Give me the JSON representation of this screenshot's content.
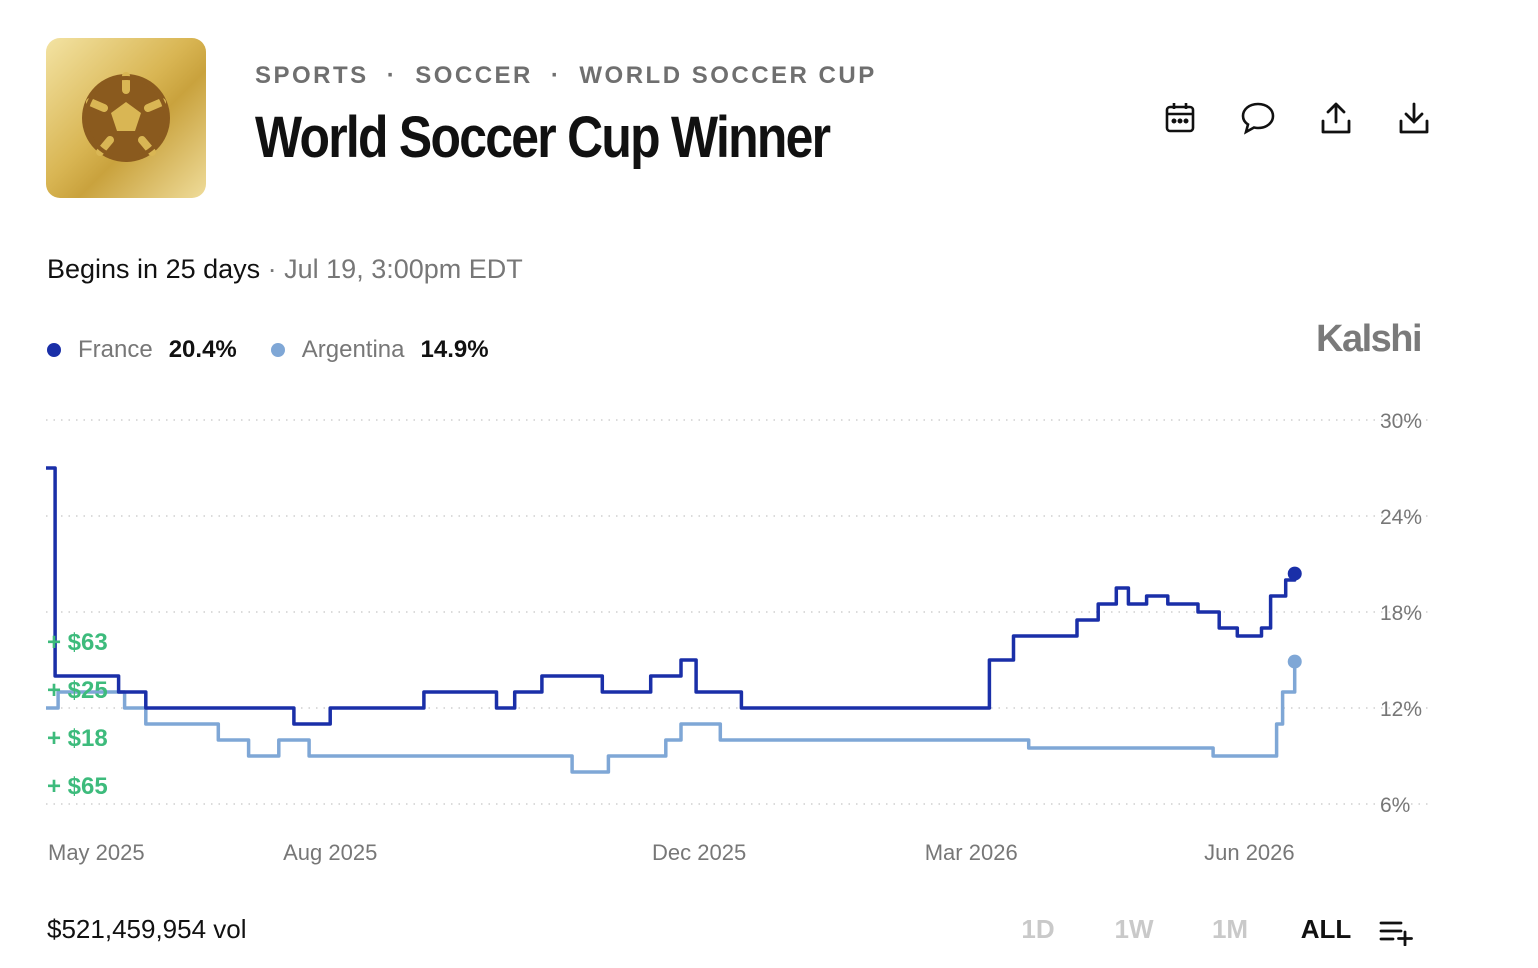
{
  "header": {
    "breadcrumbs": [
      "SPORTS",
      "SOCCER",
      "WORLD SOCCER CUP"
    ],
    "separator": "·",
    "title": "World Soccer Cup Winner",
    "logo_icon": "soccer-ball-icon",
    "actions": [
      {
        "name": "calendar-icon"
      },
      {
        "name": "comment-icon"
      },
      {
        "name": "share-icon"
      },
      {
        "name": "download-icon"
      }
    ]
  },
  "schedule": {
    "begins": "Begins in 25 days",
    "separator": " · ",
    "date": "Jul 19, 3:00pm EDT"
  },
  "brand": "Kalshi",
  "legend": [
    {
      "name": "France",
      "value": "20.4%",
      "color": "#1a2fa8"
    },
    {
      "name": "Argentina",
      "value": "14.9%",
      "color": "#7fa7d6"
    }
  ],
  "chart_data": {
    "type": "line",
    "y_ticks": [
      "30%",
      "24%",
      "18%",
      "12%",
      "6%"
    ],
    "y_tick_values": [
      30,
      24,
      18,
      12,
      6
    ],
    "ylim": [
      6,
      30
    ],
    "x_ticks": [
      "May 2025",
      "Aug 2025",
      "Dec 2025",
      "Mar 2026",
      "Jun 2026"
    ],
    "x_tick_dates": [
      "2025-05-01",
      "2025-08-01",
      "2025-12-01",
      "2026-03-01",
      "2026-06-01"
    ],
    "xlim": [
      "2025-04-29",
      "2026-06-27"
    ],
    "grid": true,
    "trade_annotations": [
      "+ $63",
      "+ $25",
      "+ $18",
      "+ $65"
    ],
    "series": [
      {
        "name": "France",
        "color": "#1a2fa8",
        "points": [
          [
            "2025-04-29",
            27
          ],
          [
            "2025-05-01",
            27
          ],
          [
            "2025-05-02",
            14
          ],
          [
            "2025-05-05",
            14
          ],
          [
            "2025-05-20",
            14
          ],
          [
            "2025-05-23",
            13
          ],
          [
            "2025-05-27",
            13
          ],
          [
            "2025-06-01",
            12
          ],
          [
            "2025-06-05",
            12
          ],
          [
            "2025-06-15",
            12
          ],
          [
            "2025-06-18",
            12
          ],
          [
            "2025-07-01",
            12
          ],
          [
            "2025-07-10",
            12
          ],
          [
            "2025-07-20",
            11
          ],
          [
            "2025-07-25",
            11
          ],
          [
            "2025-08-01",
            12
          ],
          [
            "2025-08-15",
            12
          ],
          [
            "2025-08-25",
            12
          ],
          [
            "2025-09-01",
            13
          ],
          [
            "2025-09-15",
            13
          ],
          [
            "2025-09-20",
            13
          ],
          [
            "2025-09-25",
            12
          ],
          [
            "2025-10-01",
            13
          ],
          [
            "2025-10-10",
            14
          ],
          [
            "2025-10-20",
            14
          ],
          [
            "2025-10-30",
            13
          ],
          [
            "2025-11-05",
            13
          ],
          [
            "2025-11-15",
            14
          ],
          [
            "2025-11-20",
            14
          ],
          [
            "2025-11-25",
            15
          ],
          [
            "2025-11-30",
            13
          ],
          [
            "2025-12-10",
            13
          ],
          [
            "2025-12-15",
            12
          ],
          [
            "2025-12-25",
            12
          ],
          [
            "2026-01-15",
            12
          ],
          [
            "2026-02-01",
            12
          ],
          [
            "2026-02-15",
            12
          ],
          [
            "2026-03-01",
            12
          ],
          [
            "2026-03-04",
            12
          ],
          [
            "2026-03-07",
            15
          ],
          [
            "2026-03-15",
            16.5
          ],
          [
            "2026-03-25",
            16.5
          ],
          [
            "2026-04-05",
            17.5
          ],
          [
            "2026-04-12",
            18.5
          ],
          [
            "2026-04-18",
            19.5
          ],
          [
            "2026-04-22",
            18.5
          ],
          [
            "2026-04-28",
            19
          ],
          [
            "2026-05-05",
            18.5
          ],
          [
            "2026-05-15",
            18
          ],
          [
            "2026-05-22",
            17
          ],
          [
            "2026-05-28",
            16.5
          ],
          [
            "2026-06-05",
            17
          ],
          [
            "2026-06-08",
            19
          ],
          [
            "2026-06-13",
            20
          ],
          [
            "2026-06-16",
            20.4
          ]
        ]
      },
      {
        "name": "Argentina",
        "color": "#7fa7d6",
        "points": [
          [
            "2025-04-29",
            12
          ],
          [
            "2025-05-01",
            12
          ],
          [
            "2025-05-03",
            13
          ],
          [
            "2025-05-15",
            13
          ],
          [
            "2025-05-25",
            12
          ],
          [
            "2025-06-01",
            11
          ],
          [
            "2025-06-15",
            11
          ],
          [
            "2025-06-25",
            10
          ],
          [
            "2025-07-05",
            9
          ],
          [
            "2025-07-15",
            10
          ],
          [
            "2025-07-25",
            9
          ],
          [
            "2025-08-15",
            9
          ],
          [
            "2025-09-01",
            9
          ],
          [
            "2025-09-20",
            9
          ],
          [
            "2025-10-01",
            9
          ],
          [
            "2025-10-20",
            8
          ],
          [
            "2025-11-01",
            9
          ],
          [
            "2025-11-15",
            9
          ],
          [
            "2025-11-20",
            10
          ],
          [
            "2025-11-25",
            11
          ],
          [
            "2025-12-05",
            11
          ],
          [
            "2025-12-08",
            10
          ],
          [
            "2025-12-20",
            10
          ],
          [
            "2026-01-05",
            10
          ],
          [
            "2026-02-01",
            10
          ],
          [
            "2026-02-20",
            10
          ],
          [
            "2026-03-05",
            10
          ],
          [
            "2026-03-20",
            9.5
          ],
          [
            "2026-04-05",
            9.5
          ],
          [
            "2026-04-20",
            9.5
          ],
          [
            "2026-05-05",
            9.5
          ],
          [
            "2026-05-20",
            9
          ],
          [
            "2026-06-01",
            9
          ],
          [
            "2026-06-08",
            9
          ],
          [
            "2026-06-10",
            11
          ],
          [
            "2026-06-12",
            13
          ],
          [
            "2026-06-16",
            14.9
          ]
        ]
      }
    ]
  },
  "footer": {
    "volume": "$521,459,954 vol",
    "ranges": [
      {
        "label": "1D",
        "active": false
      },
      {
        "label": "1W",
        "active": false
      },
      {
        "label": "1M",
        "active": false
      },
      {
        "label": "ALL",
        "active": true
      }
    ],
    "add_icon": "add-list-icon"
  }
}
